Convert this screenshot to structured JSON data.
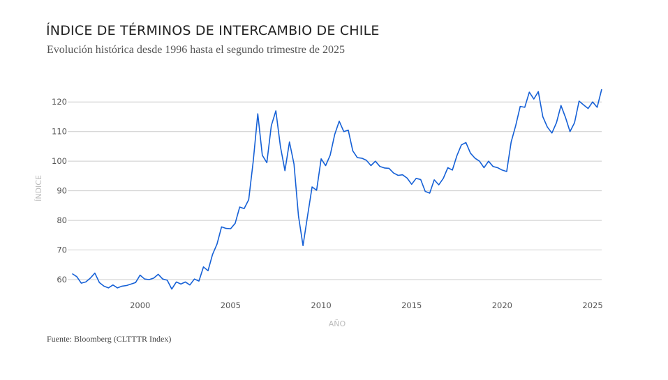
{
  "header": {
    "title": "ÍNDICE DE TÉRMINOS DE INTERCAMBIO DE CHILE",
    "subtitle": "Evolución histórica desde 1996 hasta el segundo trimestre de 2025"
  },
  "footer": {
    "source": "Fuente: Bloomberg (CLTTTR Index)"
  },
  "chart_data": {
    "type": "line",
    "title": "ÍNDICE DE TÉRMINOS DE INTERCAMBIO DE CHILE",
    "xlabel": "AÑO",
    "ylabel": "ÍNDICE",
    "xlim": [
      1996.0,
      2025.5
    ],
    "ylim": [
      56,
      125
    ],
    "grid": true,
    "color": "#1560d6",
    "x_start": 1996.25,
    "x_step": 0.25,
    "xticks": [
      "2000",
      "2005",
      "2010",
      "2015",
      "2020",
      "2025"
    ],
    "yticks": [
      "60",
      "70",
      "80",
      "90",
      "100",
      "110",
      "120"
    ],
    "series": [
      {
        "name": "CLTTTR Index",
        "values": [
          62,
          61,
          58.8,
          59.2,
          60.5,
          62.2,
          59,
          57.8,
          57.2,
          58.2,
          57.2,
          57.8,
          58,
          58.5,
          59,
          61.5,
          60.2,
          60,
          60.5,
          61.8,
          60.2,
          59.8,
          56.8,
          59.2,
          58.5,
          59.2,
          58.2,
          60.2,
          59.5,
          64.3,
          63,
          68.5,
          72,
          77.8,
          77.3,
          77.2,
          79,
          84.5,
          84,
          87,
          100,
          116,
          102,
          99.5,
          112,
          117,
          105,
          96.8,
          106.5,
          99,
          81.5,
          71.5,
          81.5,
          91.3,
          90.2,
          100.8,
          98.5,
          102,
          109,
          113.5,
          110,
          110.5,
          103.5,
          101.2,
          101,
          100.3,
          98.5,
          100,
          98.2,
          97.7,
          97.6,
          96,
          95.2,
          95.4,
          94.3,
          92.2,
          94.2,
          93.8,
          89.8,
          89.2,
          93.7,
          92,
          94.2,
          97.8,
          97,
          101.8,
          105.5,
          106.3,
          102.7,
          101,
          100,
          97.8,
          100,
          98.2,
          97.8,
          97,
          96.5,
          106.5,
          112,
          118.5,
          118.2,
          123.3,
          121,
          123.5,
          115,
          111.5,
          109.5,
          113,
          118.8,
          114.8,
          110,
          113,
          120.3,
          119,
          117.8,
          120,
          118.2,
          124.3
        ]
      }
    ]
  }
}
